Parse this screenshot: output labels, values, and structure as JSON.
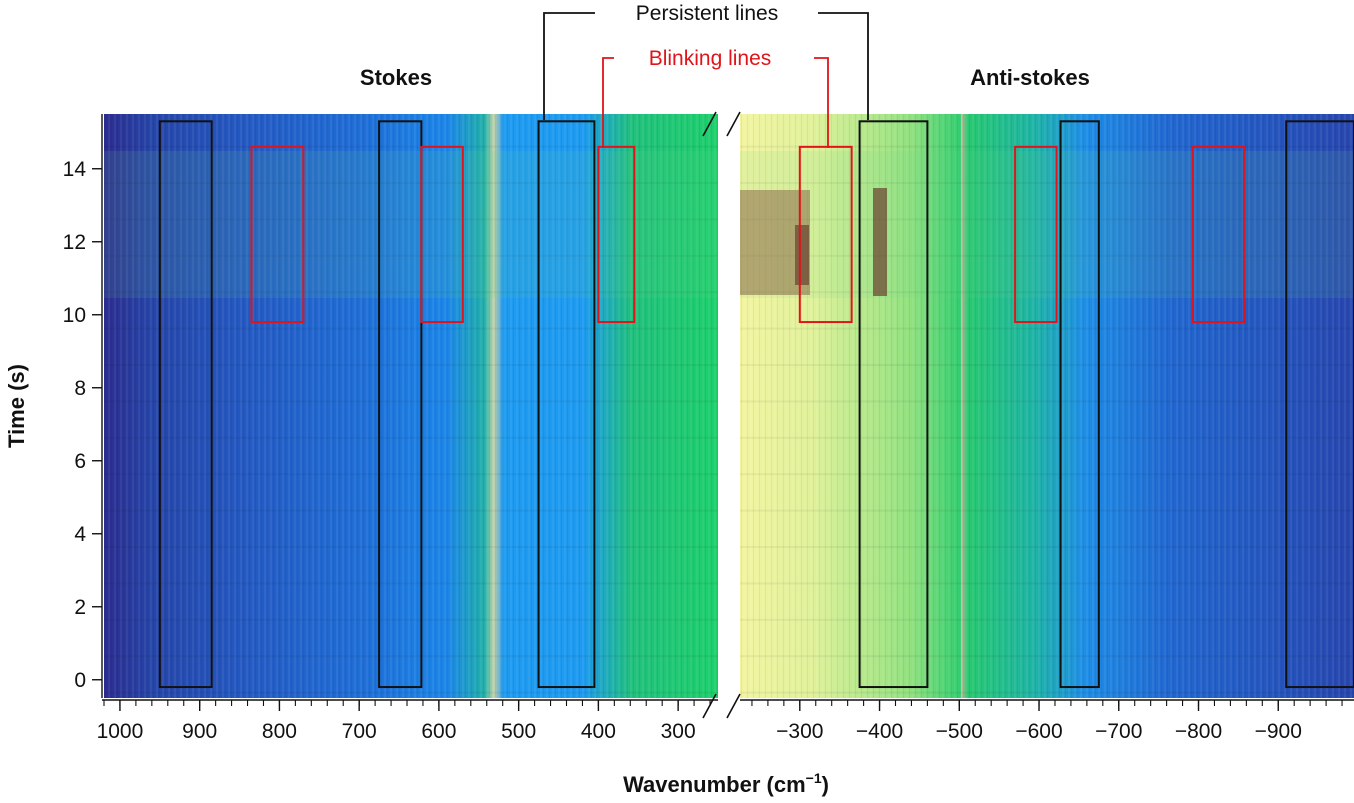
{
  "chart_data": {
    "type": "heatmap",
    "title": "",
    "xlabel": "Wavenumber (cm",
    "xlabel_sup": "−1",
    "xlabel_close": ")",
    "ylabel": "Time (s)",
    "ylim": [
      -0.5,
      15.5
    ],
    "y_ticks": [
      0,
      2,
      4,
      6,
      8,
      10,
      12,
      14
    ],
    "y_tick_labels": [
      "0",
      "2",
      "4",
      "6",
      "8",
      "10",
      "12",
      "14"
    ],
    "panels": [
      {
        "name": "Stokes",
        "label": "Stokes",
        "xlim": [
          1020,
          250
        ],
        "x_ticks": [
          1000,
          900,
          800,
          700,
          600,
          500,
          400,
          300
        ],
        "x_tick_labels": [
          "1000",
          "900",
          "800",
          "700",
          "600",
          "500",
          "400",
          "300"
        ],
        "persistent_lines": [
          {
            "x_min": 885,
            "x_max": 950,
            "t_min": -0.2,
            "t_max": 15.3
          },
          {
            "x_min": 622,
            "x_max": 675,
            "t_min": -0.2,
            "t_max": 15.3
          },
          {
            "x_min": 405,
            "x_max": 475,
            "t_min": -0.2,
            "t_max": 15.3
          }
        ],
        "blinking_lines": [
          {
            "x_min": 770,
            "x_max": 835,
            "t_min": 9.8,
            "t_max": 14.6
          },
          {
            "x_min": 570,
            "x_max": 622,
            "t_min": 9.8,
            "t_max": 14.6
          },
          {
            "x_min": 355,
            "x_max": 400,
            "t_min": 9.8,
            "t_max": 14.6
          }
        ]
      },
      {
        "name": "Anti-stokes",
        "label": "Anti-stokes",
        "xlim": [
          -225,
          -995
        ],
        "x_ticks": [
          -300,
          -400,
          -500,
          -600,
          -700,
          -800,
          -900
        ],
        "x_tick_labels": [
          "−300",
          "−400",
          "−500",
          "−600",
          "−700",
          "−800",
          "−900"
        ],
        "persistent_lines": [
          {
            "x_min": -375,
            "x_max": -460,
            "t_min": -0.2,
            "t_max": 15.3
          },
          {
            "x_min": -627,
            "x_max": -675,
            "t_min": -0.2,
            "t_max": 15.3
          },
          {
            "x_min": -910,
            "x_max": -995,
            "t_min": -0.2,
            "t_max": 15.3
          }
        ],
        "blinking_lines": [
          {
            "x_min": -300,
            "x_max": -365,
            "t_min": 9.8,
            "t_max": 14.6
          },
          {
            "x_min": -570,
            "x_max": -622,
            "t_min": 9.8,
            "t_max": 14.6
          },
          {
            "x_min": -793,
            "x_max": -857,
            "t_min": 9.8,
            "t_max": 14.6
          }
        ]
      }
    ],
    "annotations": {
      "persistent_label": "Persistent lines",
      "blinking_label": "Blinking lines"
    },
    "colors": {
      "persistent": "#111111",
      "blinking": "#e0141a",
      "colormap": [
        "#2c2a8c",
        "#1f5cc7",
        "#1e9af0",
        "#20c774",
        "#7fe07a",
        "#eef5a2",
        "#b89a6e",
        "#7b5a45"
      ]
    }
  }
}
